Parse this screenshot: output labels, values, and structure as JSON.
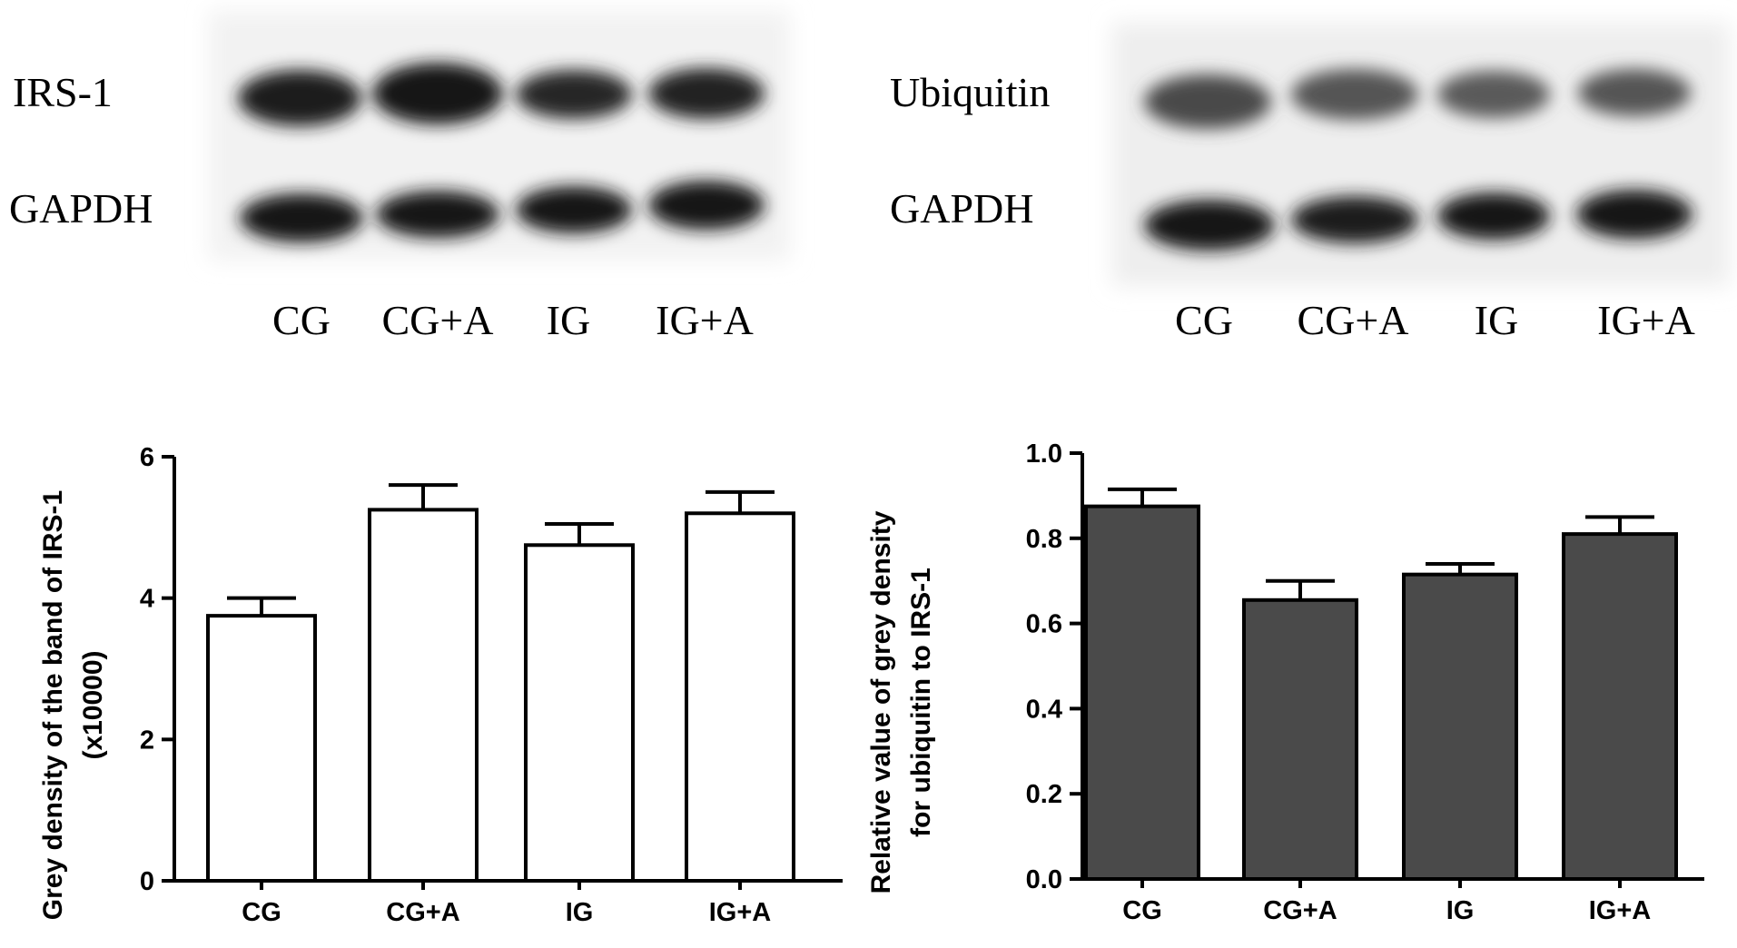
{
  "blots": [
    {
      "rows": [
        "IRS-1",
        "GAPDH"
      ],
      "lanes": [
        "CG",
        "CG+A",
        "IG",
        "IG+A"
      ]
    },
    {
      "rows": [
        "Ubiquitin",
        "GAPDH"
      ],
      "lanes": [
        "CG",
        "CG+A",
        "IG",
        "IG+A"
      ]
    }
  ],
  "chart_data": [
    {
      "type": "bar",
      "categories": [
        "CG",
        "CG+A",
        "IG",
        "IG+A"
      ],
      "values": [
        3.75,
        5.25,
        4.75,
        5.2
      ],
      "errors": [
        0.25,
        0.35,
        0.3,
        0.3
      ],
      "ylabel": "Grey density of the band of IRS-1 (x10000)",
      "ylabel_lines": [
        "Grey density of the band of IRS-1",
        "(x10000)"
      ],
      "ylim": [
        0,
        6
      ],
      "yticks": [
        0,
        2,
        4,
        6
      ],
      "bar_color": "#ffffff",
      "grid": false
    },
    {
      "type": "bar",
      "categories": [
        "CG",
        "CG+A",
        "IG",
        "IG+A"
      ],
      "values": [
        0.875,
        0.655,
        0.715,
        0.81
      ],
      "errors": [
        0.04,
        0.045,
        0.025,
        0.04
      ],
      "ylabel": "Relative value of grey density for ubiquitin to IRS-1",
      "ylabel_lines": [
        "Relative value of grey density",
        "for ubiquitin to IRS-1"
      ],
      "ylim": [
        0,
        1.0
      ],
      "yticks": [
        "0.0",
        "0.2",
        "0.4",
        "0.6",
        "0.8",
        "1.0"
      ],
      "bar_color": "#4a4a4a",
      "grid": false
    }
  ]
}
